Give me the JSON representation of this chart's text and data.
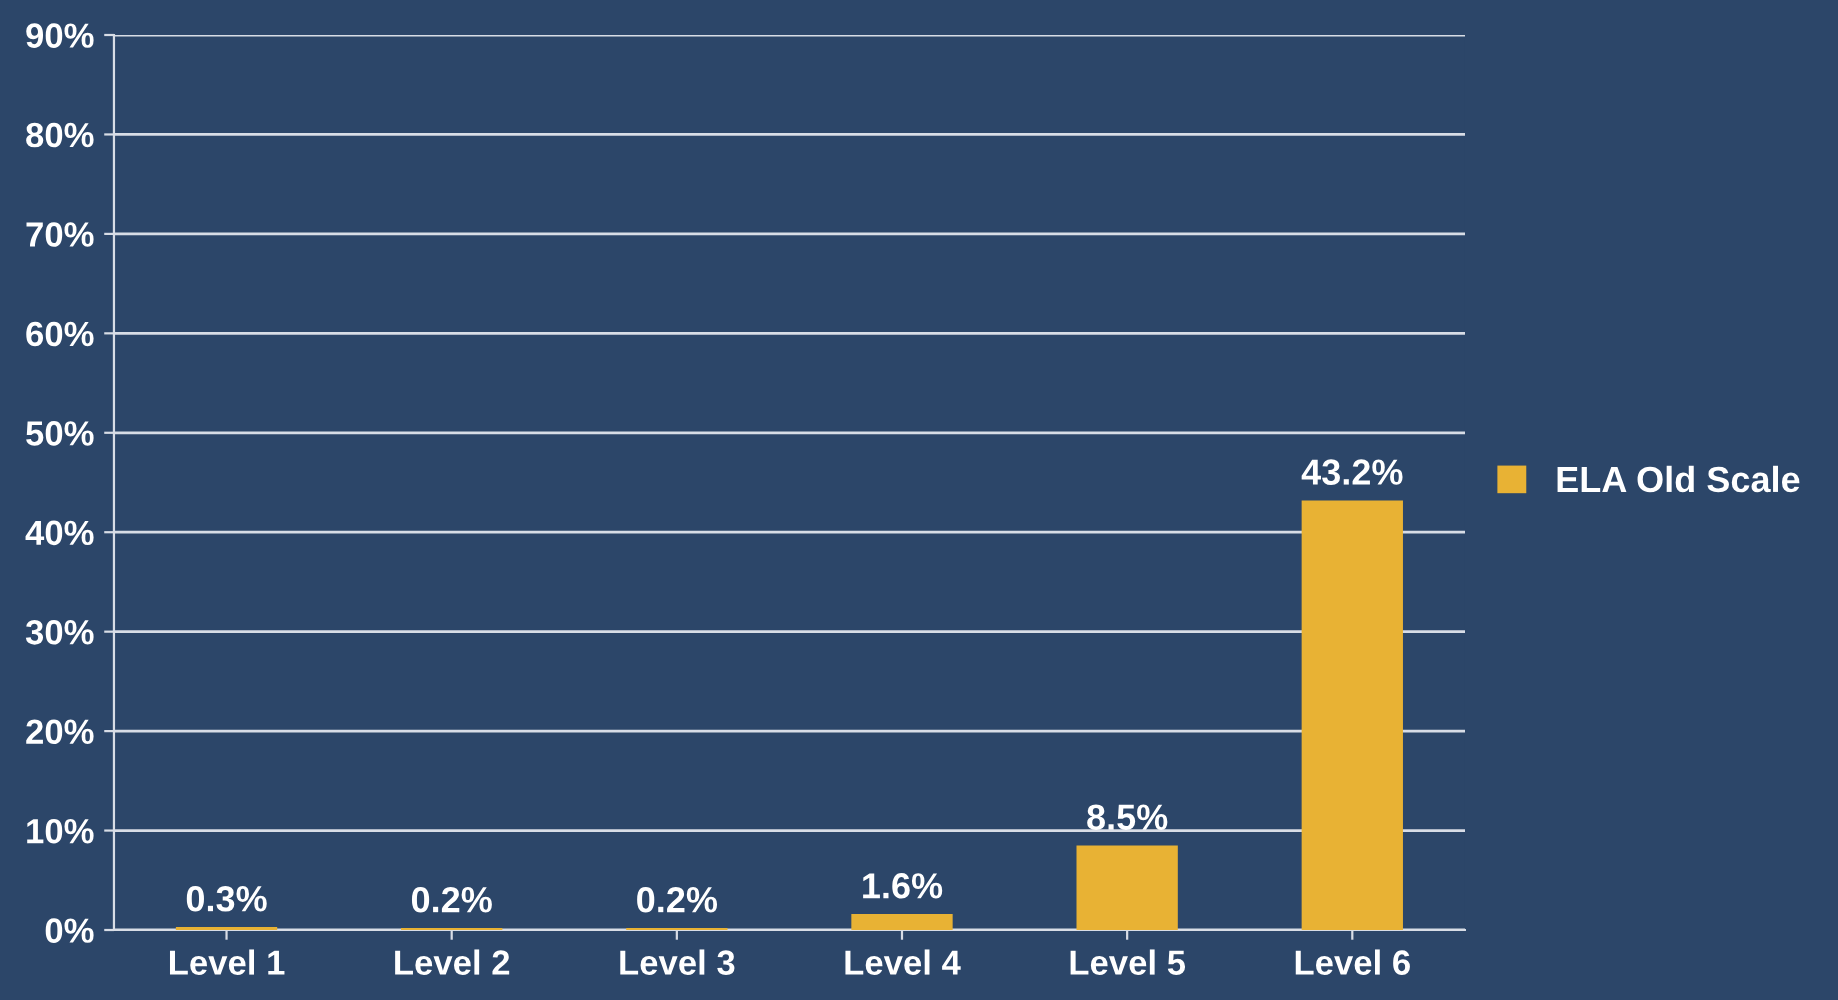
{
  "chart_data": {
    "type": "bar",
    "categories": [
      "Level 1",
      "Level 2",
      "Level 3",
      "Level 4",
      "Level 5",
      "Level 6"
    ],
    "series": [
      {
        "name": "ELA Old Scale",
        "color": "#e8b234",
        "values": [
          0.3,
          0.2,
          0.2,
          1.6,
          8.5,
          43.2
        ],
        "value_labels": [
          "0.3%",
          "0.2%",
          "0.2%",
          "1.6%",
          "8.5%",
          "43.2%"
        ]
      }
    ],
    "ylim": [
      0,
      90
    ],
    "yticks": [
      {
        "value": 0,
        "label": "0%"
      },
      {
        "value": 10,
        "label": "10%"
      },
      {
        "value": 20,
        "label": "20%"
      },
      {
        "value": 30,
        "label": "30%"
      },
      {
        "value": 40,
        "label": "40%"
      },
      {
        "value": 50,
        "label": "50%"
      },
      {
        "value": 60,
        "label": "60%"
      },
      {
        "value": 70,
        "label": "70%"
      },
      {
        "value": 80,
        "label": "80%"
      },
      {
        "value": 90,
        "label": "90%"
      }
    ],
    "grid": "y",
    "legend": "right"
  }
}
